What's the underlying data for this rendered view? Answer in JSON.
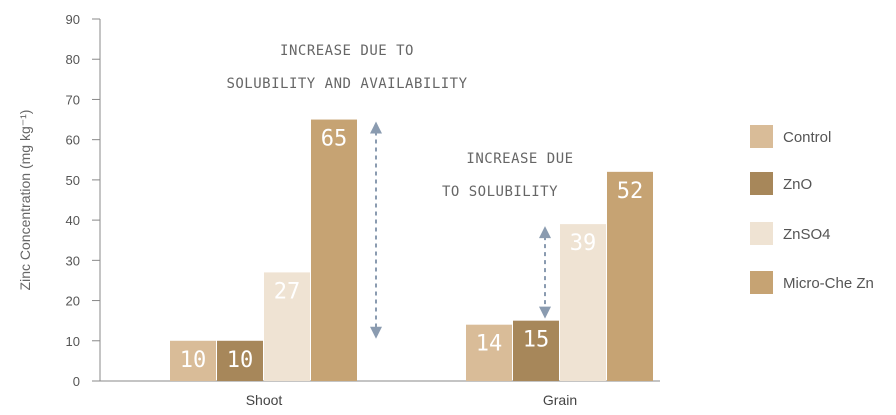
{
  "chart_data": {
    "type": "bar",
    "title": "",
    "xlabel": "",
    "ylabel": "Zinc Concentration (mg kg⁻¹)",
    "ylim": [
      0,
      90
    ],
    "yticks": [
      0,
      10,
      20,
      30,
      40,
      50,
      60,
      70,
      80,
      90
    ],
    "categories": [
      "Shoot",
      "Grain"
    ],
    "series": [
      {
        "name": "Control",
        "values": [
          10,
          14
        ],
        "color": "#D9BC98"
      },
      {
        "name": "ZnO",
        "values": [
          10,
          15
        ],
        "color": "#A7875A"
      },
      {
        "name": "ZnSO4",
        "values": [
          27,
          39
        ],
        "color": "#EFE3D3"
      },
      {
        "name": "Micro-Che Zn",
        "values": [
          65,
          52
        ],
        "color": "#C6A373"
      }
    ],
    "data_labels": [
      [
        "10",
        "10",
        "27",
        "65"
      ],
      [
        "14",
        "15",
        "39",
        "52"
      ]
    ],
    "legend_position": "right",
    "grid": false,
    "annotations": [
      {
        "lines": [
          "INCREASE DUE TO",
          "SOLUBILITY AND AVAILABILITY"
        ],
        "category": "Shoot",
        "arrow_from": 10,
        "arrow_to": 65
      },
      {
        "lines": [
          "INCREASE DUE",
          "TO SOLUBILITY"
        ],
        "category": "Grain",
        "arrow_from": 15,
        "arrow_to": 39
      }
    ],
    "arrow_color": "#8A9BB0"
  }
}
